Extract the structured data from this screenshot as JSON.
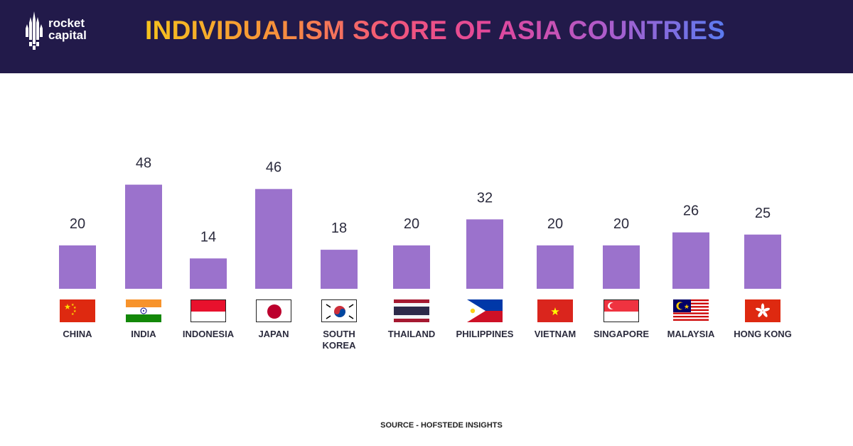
{
  "header": {
    "logo_text": "rocket\ncapital",
    "title": "INDIVIDUALISM SCORE OF ASIA COUNTRIES"
  },
  "source": "SOURCE - HOFSTEDE INSIGHTS",
  "colors": {
    "bar": "#9b72cc",
    "header_bg": "#221a4a",
    "value_label": "#2b2b3d"
  },
  "chart_data": {
    "type": "bar",
    "title": "INDIVIDUALISM SCORE OF ASIA COUNTRIES",
    "categories": [
      "CHINA",
      "INDIA",
      "INDONESIA",
      "JAPAN",
      "SOUTH\nKOREA",
      "THAILAND",
      "PHILIPPINES",
      "VIETNAM",
      "SINGAPORE",
      "MALAYSIA",
      "HONG KONG"
    ],
    "values": [
      20,
      48,
      14,
      46,
      18,
      20,
      32,
      20,
      20,
      26,
      25
    ],
    "ylim": [
      0,
      50
    ],
    "grid": false,
    "legend": "none"
  },
  "flags": [
    "china-flag-icon",
    "india-flag-icon",
    "indonesia-flag-icon",
    "japan-flag-icon",
    "south-korea-flag-icon",
    "thailand-flag-icon",
    "philippines-flag-icon",
    "vietnam-flag-icon",
    "singapore-flag-icon",
    "malaysia-flag-icon",
    "hong-kong-flag-icon"
  ]
}
